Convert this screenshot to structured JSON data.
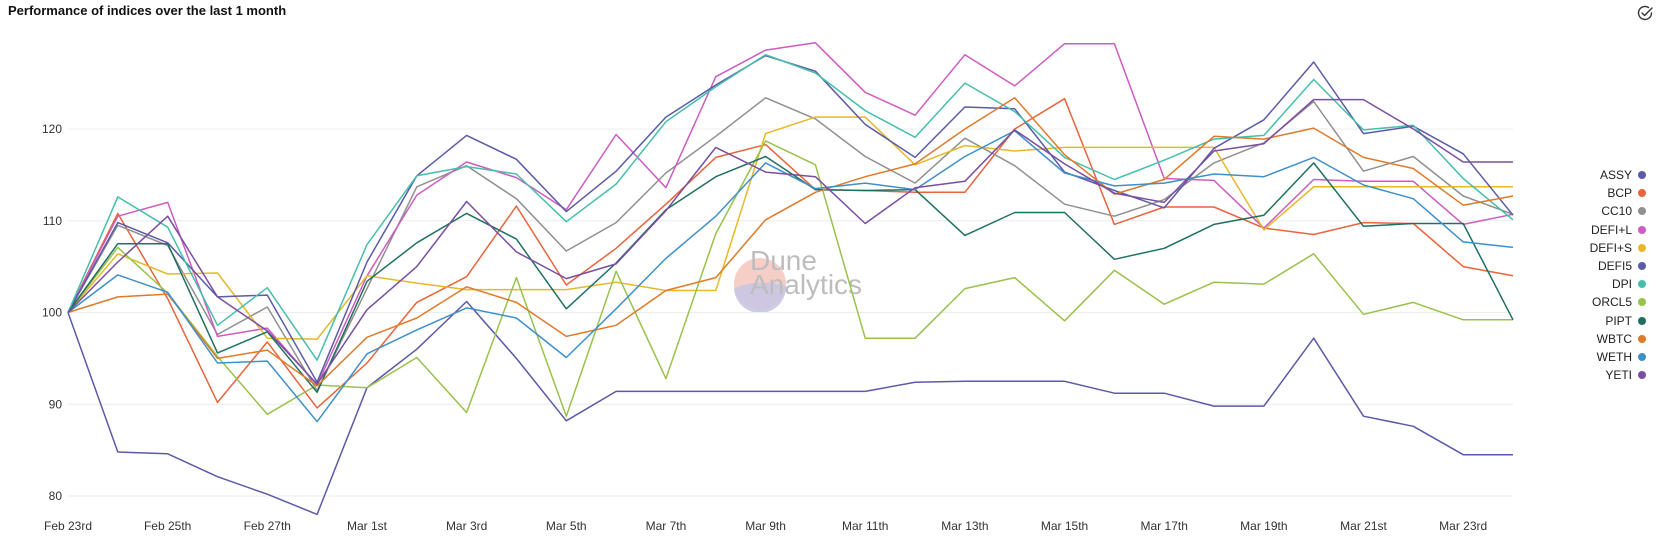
{
  "header": {
    "title": "Performance of indices over the last 1 month"
  },
  "icons": {
    "check": "circle-check-icon"
  },
  "watermark": {
    "line1": "Dune",
    "line2": "Analytics"
  },
  "chart_data": {
    "type": "line",
    "title": "Performance of indices over the last 1 month",
    "xlabel": "",
    "ylabel": "",
    "ylim": [
      78,
      131
    ],
    "yticks": [
      80,
      90,
      100,
      110,
      120
    ],
    "x": [
      "Feb 23rd",
      "Feb 24th",
      "Feb 25th",
      "Feb 26th",
      "Feb 27th",
      "Feb 28th",
      "Mar 1st",
      "Mar 2nd",
      "Mar 3rd",
      "Mar 4th",
      "Mar 5th",
      "Mar 6th",
      "Mar 7th",
      "Mar 8th",
      "Mar 9th",
      "Mar 10th",
      "Mar 11th",
      "Mar 12th",
      "Mar 13th",
      "Mar 14th",
      "Mar 15th",
      "Mar 16th",
      "Mar 17th",
      "Mar 18th",
      "Mar 19th",
      "Mar 20th",
      "Mar 21st",
      "Mar 22nd",
      "Mar 23rd",
      "Mar 24th"
    ],
    "xticks": [
      "Feb 23rd",
      "Feb 25th",
      "Feb 27th",
      "Mar 1st",
      "Mar 3rd",
      "Mar 5th",
      "Mar 7th",
      "Mar 9th",
      "Mar 11th",
      "Mar 13th",
      "Mar 15th",
      "Mar 17th",
      "Mar 19th",
      "Mar 21st",
      "Mar 23rd"
    ],
    "grid": true,
    "legend_position": "right",
    "series": [
      {
        "name": "ASSY",
        "color": "#5a5aa8",
        "values": [
          100,
          84.8,
          84.6,
          82.1,
          80.2,
          78.0,
          91.8,
          96.0,
          101.2,
          95.0,
          88.2,
          91.4,
          91.4,
          91.4,
          91.4,
          91.4,
          91.4,
          92.4,
          92.5,
          92.5,
          92.5,
          91.2,
          91.2,
          89.8,
          89.8,
          97.2,
          88.7,
          87.6,
          84.5,
          84.5
        ]
      },
      {
        "name": "BCP",
        "color": "#e8643c",
        "values": [
          100,
          110.8,
          101.5,
          90.2,
          96.8,
          89.6,
          94.5,
          101.1,
          103.9,
          111.6,
          103.0,
          107.0,
          111.8,
          116.9,
          118.3,
          113.4,
          113.3,
          113.1,
          113.1,
          120.0,
          123.3,
          109.6,
          111.5,
          111.5,
          109.2,
          108.5,
          109.8,
          109.7,
          105.0,
          104.0
        ]
      },
      {
        "name": "CC10",
        "color": "#909090",
        "values": [
          100,
          109.5,
          107.3,
          97.6,
          100.6,
          91.5,
          102.6,
          113.7,
          116.0,
          112.4,
          106.7,
          109.8,
          115.2,
          119.2,
          123.4,
          121.1,
          117.0,
          114.1,
          119.0,
          116.0,
          111.8,
          110.5,
          112.3,
          116.3,
          118.5,
          123.0,
          115.4,
          117.0,
          112.7,
          110.7
        ]
      },
      {
        "name": "DEFI+L",
        "color": "#cc5cc0",
        "values": [
          100,
          110.5,
          112.0,
          97.4,
          98.3,
          92.1,
          104.0,
          112.8,
          116.4,
          114.7,
          111.2,
          119.4,
          113.6,
          125.7,
          128.6,
          129.4,
          124.0,
          121.5,
          128.1,
          124.7,
          129.3,
          129.3,
          114.6,
          114.4,
          109.2,
          114.5,
          114.3,
          114.3,
          109.6,
          110.7
        ]
      },
      {
        "name": "DEFI+S",
        "color": "#e6b82a",
        "values": [
          100,
          106.4,
          104.2,
          104.3,
          97.2,
          97.1,
          104.0,
          103.2,
          102.5,
          102.5,
          102.5,
          103.3,
          102.4,
          102.4,
          119.5,
          121.3,
          121.3,
          116.1,
          118.2,
          117.6,
          118.0,
          118.0,
          118.0,
          118.0,
          109.0,
          113.7,
          113.7,
          113.7,
          113.7,
          113.7
        ]
      },
      {
        "name": "DEFI5",
        "color": "#5a5aa8",
        "values": [
          100,
          109.8,
          107.6,
          101.7,
          101.9,
          92.4,
          105.5,
          114.9,
          119.3,
          116.7,
          111.0,
          115.4,
          121.3,
          124.8,
          128.0,
          126.3,
          120.5,
          116.9,
          122.4,
          122.2,
          115.3,
          113.3,
          111.4,
          117.9,
          121.0,
          127.3,
          119.5,
          120.3,
          117.3,
          110.6
        ]
      },
      {
        "name": "DPI",
        "color": "#45bfab",
        "values": [
          100,
          112.6,
          109.3,
          98.6,
          102.7,
          94.8,
          107.4,
          114.9,
          115.9,
          115.1,
          109.9,
          114.0,
          120.8,
          124.6,
          128.1,
          126.1,
          122.0,
          119.1,
          125.0,
          121.9,
          116.9,
          114.5,
          116.6,
          118.9,
          119.3,
          125.4,
          119.9,
          120.4,
          114.6,
          110.1
        ]
      },
      {
        "name": "ORCL5",
        "color": "#98c24a",
        "values": [
          100,
          107.1,
          102.1,
          95.2,
          88.9,
          92.1,
          91.8,
          95.1,
          89.1,
          103.8,
          88.7,
          104.5,
          92.8,
          108.6,
          118.7,
          116.1,
          97.2,
          97.2,
          102.6,
          103.8,
          99.1,
          104.6,
          100.9,
          103.3,
          103.1,
          106.4,
          99.8,
          101.1,
          99.2,
          99.2
        ]
      },
      {
        "name": "PIPT",
        "color": "#1f7060",
        "values": [
          100,
          107.5,
          107.5,
          95.6,
          97.9,
          91.3,
          103.4,
          107.6,
          110.8,
          108.0,
          100.4,
          105.4,
          111.2,
          114.8,
          117.0,
          113.4,
          113.3,
          113.4,
          108.4,
          110.9,
          110.9,
          105.8,
          107.0,
          109.6,
          110.6,
          116.3,
          109.4,
          109.7,
          109.7,
          99.2
        ]
      },
      {
        "name": "WBTC",
        "color": "#e07a2a",
        "values": [
          100,
          101.7,
          102.0,
          95.0,
          95.9,
          92.0,
          97.3,
          99.4,
          102.8,
          101.1,
          97.4,
          98.6,
          102.4,
          103.8,
          110.1,
          113.1,
          114.8,
          116.2,
          120.0,
          123.4,
          117.2,
          112.9,
          114.5,
          119.2,
          118.9,
          120.1,
          116.9,
          115.7,
          111.7,
          112.7
        ]
      },
      {
        "name": "WETH",
        "color": "#3e90c8",
        "values": [
          100,
          104.1,
          102.2,
          94.5,
          94.7,
          88.1,
          95.5,
          98.1,
          100.5,
          99.4,
          95.1,
          100.4,
          105.9,
          110.5,
          116.3,
          113.5,
          114.1,
          113.4,
          117.0,
          119.8,
          115.2,
          113.8,
          114.1,
          115.1,
          114.8,
          116.9,
          113.9,
          112.4,
          107.7,
          107.1
        ]
      },
      {
        "name": "YETI",
        "color": "#7a4ea0",
        "values": [
          100,
          105.5,
          110.5,
          101.7,
          98.0,
          92.2,
          100.3,
          105.0,
          112.1,
          106.6,
          103.7,
          105.3,
          111.1,
          118.0,
          115.3,
          114.8,
          109.7,
          113.6,
          114.3,
          119.9,
          116.2,
          113.0,
          112.0,
          117.6,
          118.4,
          123.2,
          123.2,
          120.0,
          116.4,
          116.4
        ]
      }
    ]
  }
}
